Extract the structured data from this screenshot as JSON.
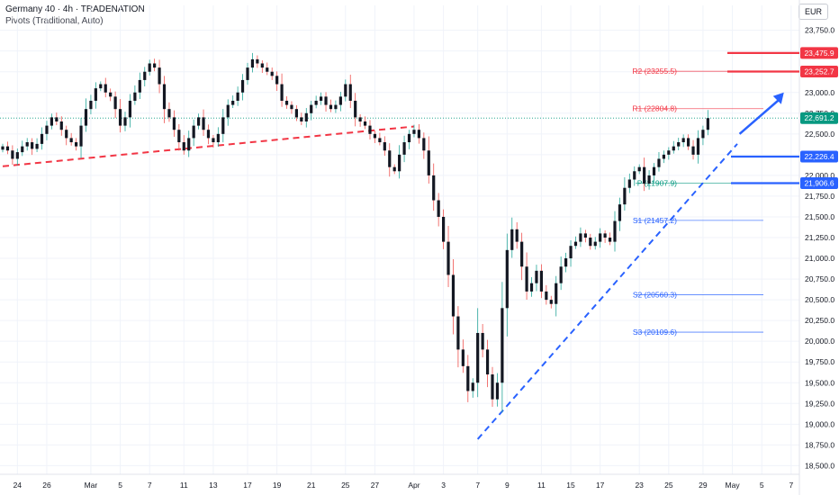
{
  "header": {
    "title": "Germany 40 · 4h · TRADENATION",
    "indicator": "Pivots (Traditional, Auto)",
    "currency": "EUR"
  },
  "colors": {
    "up": "#26a69a",
    "down": "#ef5350",
    "candle": "#131722",
    "resistance": "#f23645",
    "support": "#2962ff",
    "pivot": "#089981",
    "last": "#089981"
  },
  "chart_data": {
    "type": "candlestick",
    "ylim": [
      18450,
      24050
    ],
    "y_ticks": [
      "23,750.0",
      "23,500.0",
      "23,250.0",
      "23,000.0",
      "22,750.0",
      "22,500.0",
      "22,250.0",
      "22,000.0",
      "21,750.0",
      "21,500.0",
      "21,250.0",
      "21,000.0",
      "20,750.0",
      "20,500.0",
      "20,250.0",
      "20,000.0",
      "19,750.0",
      "19,500.0",
      "19,250.0",
      "19,000.0",
      "18,750.0",
      "18,500.0"
    ],
    "y_tick_values": [
      23750,
      23500,
      23250,
      23000,
      22750,
      22500,
      22250,
      22000,
      21750,
      21500,
      21250,
      21000,
      20750,
      20500,
      20250,
      20000,
      19750,
      19500,
      19250,
      19000,
      18750,
      18500
    ],
    "x_ticks": [
      "24",
      "26",
      "Mar",
      "5",
      "7",
      "11",
      "13",
      "17",
      "19",
      "21",
      "25",
      "27",
      "Apr",
      "3",
      "7",
      "9",
      "11",
      "15",
      "17",
      "23",
      "25",
      "29",
      "May",
      "5",
      "7"
    ],
    "x_tick_index": [
      3,
      9,
      18,
      24,
      30,
      37,
      43,
      50,
      56,
      63,
      70,
      76,
      84,
      90,
      97,
      103,
      110,
      116,
      122,
      130,
      136,
      143,
      149,
      155,
      161
    ],
    "close_path": [
      22350,
      22300,
      22200,
      22280,
      22350,
      22400,
      22320,
      22380,
      22500,
      22600,
      22700,
      22650,
      22550,
      22450,
      22400,
      22350,
      22600,
      22800,
      22900,
      23050,
      23100,
      23000,
      22950,
      22800,
      22600,
      22700,
      22900,
      23000,
      23150,
      23250,
      23350,
      23300,
      23100,
      22800,
      22700,
      22550,
      22400,
      22300,
      22450,
      22600,
      22700,
      22550,
      22450,
      22400,
      22500,
      22700,
      22850,
      22900,
      23000,
      23150,
      23300,
      23400,
      23350,
      23300,
      23250,
      23200,
      23100,
      22900,
      22850,
      22800,
      22700,
      22650,
      22750,
      22850,
      22900,
      22950,
      22850,
      22800,
      22850,
      22950,
      23100,
      22900,
      22700,
      22650,
      22600,
      22500,
      22450,
      22400,
      22300,
      22100,
      22050,
      22250,
      22400,
      22500,
      22550,
      22450,
      22300,
      22000,
      21700,
      21500,
      21200,
      20800,
      20300,
      19900,
      19700,
      19400,
      19500,
      20100,
      19900,
      19600,
      19300,
      19500,
      20400,
      21100,
      21350,
      21200,
      20900,
      20600,
      20700,
      20850,
      20600,
      20500,
      20450,
      20700,
      20900,
      21000,
      21150,
      21200,
      21300,
      21250,
      21150,
      21200,
      21300,
      21250,
      21200,
      21450,
      21650,
      21850,
      21950,
      22050,
      22100,
      21900,
      22000,
      22100,
      22200,
      22250,
      22300,
      22350,
      22400,
      22450,
      22350,
      22250,
      22450,
      22550,
      22691.2
    ],
    "last_price": "22,691.2",
    "pivots": [
      {
        "name": "R2",
        "label": "R2 (23255.5)",
        "value": 23255.5,
        "kind": "resistance"
      },
      {
        "name": "R1",
        "label": "R1 (22804.8)",
        "value": 22804.8,
        "kind": "resistance"
      },
      {
        "name": "P",
        "label": "P (21907.9)",
        "value": 21907.9,
        "kind": "pivot"
      },
      {
        "name": "S1",
        "label": "S1 (21457.2)",
        "value": 21457.2,
        "kind": "support"
      },
      {
        "name": "S2",
        "label": "S2 (20560.3)",
        "value": 20560.3,
        "kind": "support"
      },
      {
        "name": "S3",
        "label": "S3 (20109.6)",
        "value": 20109.6,
        "kind": "support"
      }
    ],
    "price_tags": [
      {
        "text": "23,475.9",
        "value": 23475.9,
        "kind": "resistance"
      },
      {
        "text": "23,252.7",
        "value": 23252.7,
        "kind": "resistance"
      },
      {
        "text": "22,691.2",
        "value": 22691.2,
        "kind": "last"
      },
      {
        "text": "22,226.4",
        "value": 22226.4,
        "kind": "support"
      },
      {
        "text": "21,906.6",
        "value": 21906.6,
        "kind": "support"
      }
    ],
    "trendlines": [
      {
        "name": "resistance-trendline",
        "kind": "resistance",
        "from": [
          0,
          22110
        ],
        "to": [
          84,
          22590
        ]
      },
      {
        "name": "support-trendline",
        "kind": "support",
        "from": [
          97,
          18820
        ],
        "to": [
          150,
          22380
        ]
      }
    ],
    "arrow": {
      "from": [
        149,
        22500
      ],
      "to": [
        154,
        23000
      ]
    }
  }
}
